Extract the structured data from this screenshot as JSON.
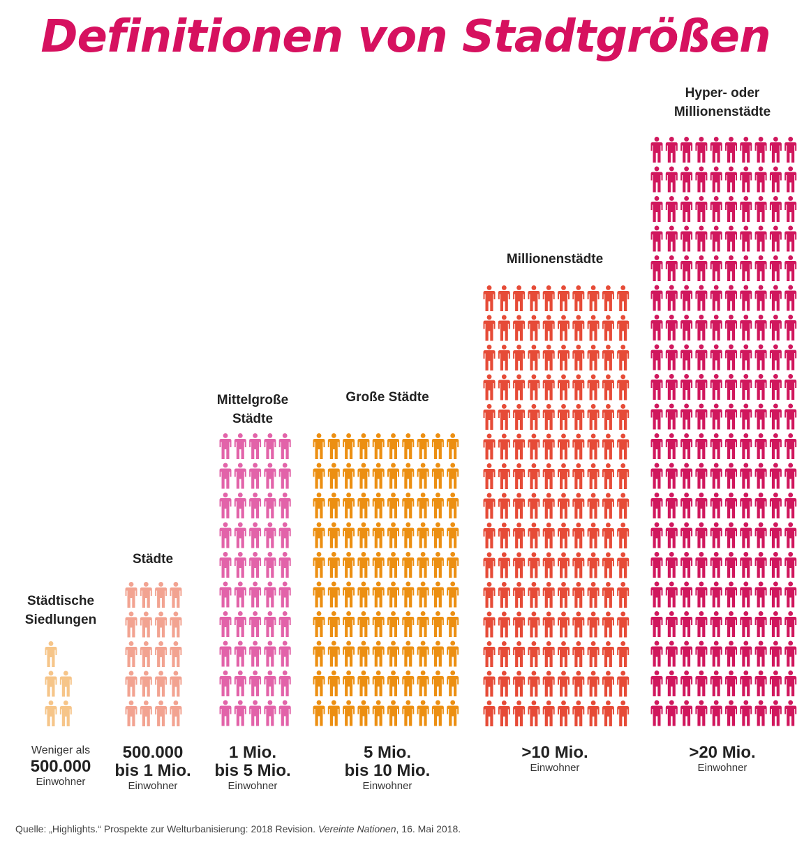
{
  "title": "Definitionen von Stadtgrößen",
  "chart_data": {
    "type": "pictogram",
    "categories": [
      {
        "name": "Städtische\nSiedlungen",
        "pre": "Weniger als",
        "range": [
          "500.000"
        ],
        "unit": "Einwohner",
        "icons": 5,
        "color": "#f6c589"
      },
      {
        "name": "Städte",
        "pre": "",
        "range": [
          "500.000",
          "bis 1 Mio."
        ],
        "unit": "Einwohner",
        "icons": 20,
        "color": "#f2a391"
      },
      {
        "name": "Mittelgroße\nStädte",
        "pre": "",
        "range": [
          "1 Mio.",
          "bis 5 Mio."
        ],
        "unit": "Einwohner",
        "icons": 50,
        "color": "#e263a9"
      },
      {
        "name": "Große Städte",
        "pre": "",
        "range": [
          "5 Mio.",
          "bis 10 Mio."
        ],
        "unit": "Einwohner",
        "icons": 100,
        "color": "#ec8f12"
      },
      {
        "name": "Millionenstädte",
        "pre": "",
        "range": [
          ">10 Mio."
        ],
        "unit": "Einwohner",
        "icons": 150,
        "color": "#e64b37"
      },
      {
        "name": "Hyper- oder\nMillionenstädte",
        "pre": "",
        "range": [
          ">20 Mio."
        ],
        "unit": "Einwohner",
        "icons": 200,
        "color": "#d0175d"
      }
    ]
  },
  "source": {
    "prefix": "Quelle: „Highlights.“ Prospekte zur Welturbanisierung: 2018 Revision. ",
    "italic": "Vereinte Nationen",
    "suffix": ", 16. Mai 2018."
  }
}
